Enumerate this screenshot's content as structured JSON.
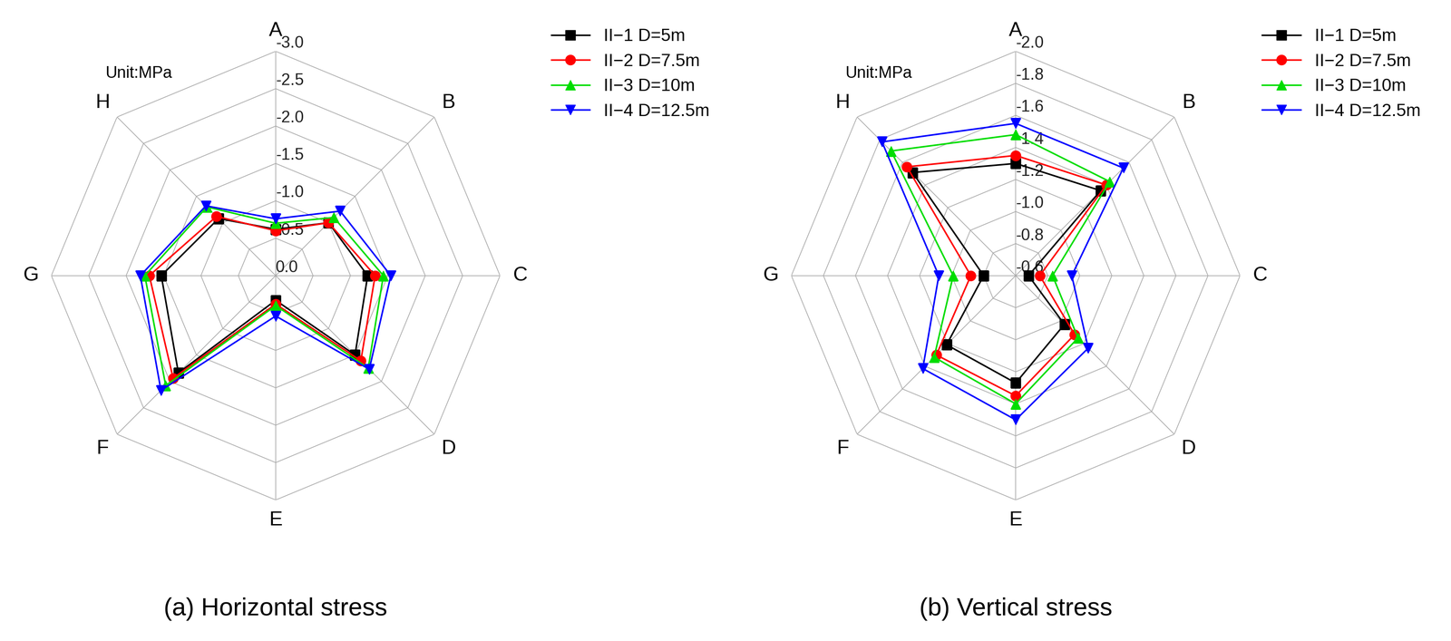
{
  "chart_data": [
    {
      "type": "radar",
      "title": "(a) Horizontal stress",
      "annotations": [
        "Unit:MPa"
      ],
      "categories": [
        "A",
        "B",
        "C",
        "D",
        "E",
        "F",
        "G",
        "H"
      ],
      "ylim": [
        0.0,
        -3.0
      ],
      "yticks": [
        {
          "value": 0.0,
          "label": "0.0"
        },
        {
          "value": -0.5,
          "label": "-0.5"
        },
        {
          "value": -1.0,
          "label": "-1.0"
        },
        {
          "value": -1.5,
          "label": "-1.5"
        },
        {
          "value": -2.0,
          "label": "-2.0"
        },
        {
          "value": -2.5,
          "label": "-2.5"
        },
        {
          "value": -3.0,
          "label": "-3.0"
        }
      ],
      "grid": true,
      "legend": "upper right",
      "series": [
        {
          "name": "II−1 D=5m",
          "color": "#000000",
          "marker": "square",
          "values": [
            -0.62,
            -1.0,
            -1.23,
            -1.5,
            -0.33,
            -1.84,
            -1.53,
            -1.08
          ]
        },
        {
          "name": "II−2 D=7.5m",
          "color": "#ff0000",
          "marker": "circle",
          "values": [
            -0.6,
            -1.0,
            -1.33,
            -1.61,
            -0.38,
            -1.94,
            -1.69,
            -1.12
          ]
        },
        {
          "name": "II−3 D=10m",
          "color": "#00dd00",
          "marker": "triangle_up",
          "values": [
            -0.7,
            -1.1,
            -1.44,
            -1.75,
            -0.4,
            -2.08,
            -1.75,
            -1.3
          ]
        },
        {
          "name": "II−4 D=12.5m",
          "color": "#0000ff",
          "marker": "triangle_down",
          "values": [
            -0.76,
            -1.22,
            -1.54,
            -1.77,
            -0.54,
            -2.17,
            -1.81,
            -1.32
          ]
        }
      ]
    },
    {
      "type": "radar",
      "title": "(b) Vertical stress",
      "annotations": [
        "Unit:MPa"
      ],
      "categories": [
        "A",
        "B",
        "C",
        "D",
        "E",
        "F",
        "G",
        "H"
      ],
      "ylim": [
        -0.6,
        -2.0
      ],
      "yticks": [
        {
          "value": -0.6,
          "label": "-0.6"
        },
        {
          "value": -0.8,
          "label": "-0.8"
        },
        {
          "value": -1.0,
          "label": "-1.0"
        },
        {
          "value": -1.2,
          "label": "-1.2"
        },
        {
          "value": -1.4,
          "label": "-1.4"
        },
        {
          "value": -1.6,
          "label": "-1.6"
        },
        {
          "value": -1.8,
          "label": "-1.8"
        },
        {
          "value": -2.0,
          "label": "-2.0"
        }
      ],
      "grid": true,
      "legend": "upper right",
      "series": [
        {
          "name": "II−1 D=5m",
          "color": "#000000",
          "marker": "square",
          "values": [
            -1.3,
            -1.35,
            -0.68,
            -1.03,
            -1.27,
            -1.21,
            -0.8,
            -1.51
          ]
        },
        {
          "name": "II−2 D=7.5m",
          "color": "#ff0000",
          "marker": "circle",
          "values": [
            -1.35,
            -1.4,
            -0.75,
            -1.12,
            -1.35,
            -1.3,
            -0.88,
            -1.56
          ]
        },
        {
          "name": "II−3 D=10m",
          "color": "#00dd00",
          "marker": "triangle_up",
          "values": [
            -1.48,
            -1.43,
            -0.83,
            -1.15,
            -1.4,
            -1.32,
            -0.99,
            -1.7
          ]
        },
        {
          "name": "II−4 D=12.5m",
          "color": "#0000ff",
          "marker": "triangle_down",
          "values": [
            -1.55,
            -1.55,
            -0.95,
            -1.24,
            -1.5,
            -1.42,
            -1.08,
            -1.78
          ]
        }
      ]
    }
  ]
}
